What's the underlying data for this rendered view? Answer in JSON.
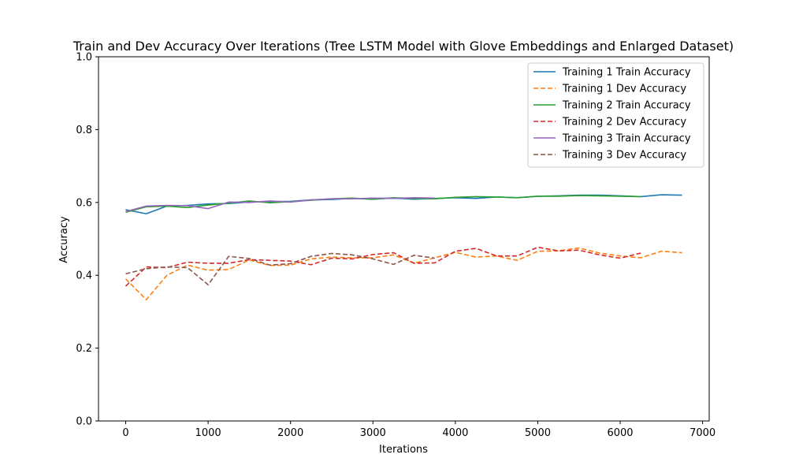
{
  "chart_data": {
    "type": "line",
    "title": "Train and Dev Accuracy Over Iterations (Tree LSTM Model with Glove Embeddings and Enlarged Dataset)",
    "xlabel": "Iterations",
    "ylabel": "Accuracy",
    "xlim": [
      -330,
      7080
    ],
    "ylim": [
      0,
      1.0
    ],
    "xticks": [
      0,
      1000,
      2000,
      3000,
      4000,
      5000,
      6000,
      7000
    ],
    "yticks": [
      0.0,
      0.2,
      0.4,
      0.6,
      0.8,
      1.0
    ],
    "xtick_labels": [
      "0",
      "1000",
      "2000",
      "3000",
      "4000",
      "5000",
      "6000",
      "7000"
    ],
    "ytick_labels": [
      "0.0",
      "0.2",
      "0.4",
      "0.6",
      "0.8",
      "1.0"
    ],
    "grid": false,
    "legend_position": "top-right",
    "series": [
      {
        "name": "Training 1 Train Accuracy",
        "color": "#1f77b4",
        "dash": "solid",
        "x": [
          0,
          250,
          500,
          750,
          1000,
          1250,
          1500,
          1750,
          2000,
          2250,
          2500,
          2750,
          3000,
          3250,
          3500,
          3750,
          4000,
          4250,
          4500,
          4750,
          5000,
          5250,
          5500,
          5750,
          6000,
          6250,
          6500,
          6750
        ],
        "y": [
          0.58,
          0.569,
          0.59,
          0.592,
          0.596,
          0.597,
          0.601,
          0.602,
          0.603,
          0.607,
          0.608,
          0.611,
          0.609,
          0.612,
          0.609,
          0.611,
          0.613,
          0.611,
          0.615,
          0.613,
          0.617,
          0.618,
          0.62,
          0.62,
          0.618,
          0.616,
          0.621,
          0.62
        ]
      },
      {
        "name": "Training 1 Dev Accuracy",
        "color": "#ff7f0e",
        "dash": "dashed",
        "x": [
          0,
          250,
          500,
          750,
          1000,
          1250,
          1500,
          1750,
          2000,
          2250,
          2500,
          2750,
          3000,
          3250,
          3500,
          3750,
          4000,
          4250,
          4500,
          4750,
          5000,
          5250,
          5500,
          5750,
          6000,
          6250,
          6500,
          6750
        ],
        "y": [
          0.39,
          0.333,
          0.4,
          0.428,
          0.414,
          0.416,
          0.442,
          0.427,
          0.428,
          0.445,
          0.45,
          0.448,
          0.448,
          0.456,
          0.433,
          0.448,
          0.463,
          0.45,
          0.453,
          0.441,
          0.466,
          0.467,
          0.475,
          0.461,
          0.453,
          0.448,
          0.466,
          0.462
        ]
      },
      {
        "name": "Training 2 Train Accuracy",
        "color": "#2ca02c",
        "dash": "solid",
        "x": [
          0,
          250,
          500,
          750,
          1000,
          1250,
          1500,
          1750,
          2000,
          2250,
          2500,
          2750,
          3000,
          3250,
          3500,
          3750,
          4000,
          4250,
          4500,
          4750,
          5000,
          5250,
          5500,
          5750,
          6000,
          6250
        ],
        "y": [
          0.573,
          0.588,
          0.59,
          0.586,
          0.593,
          0.598,
          0.604,
          0.599,
          0.602,
          0.606,
          0.61,
          0.612,
          0.609,
          0.613,
          0.611,
          0.61,
          0.614,
          0.616,
          0.615,
          0.613,
          0.617,
          0.617,
          0.619,
          0.618,
          0.617,
          0.616
        ]
      },
      {
        "name": "Training 2 Dev Accuracy",
        "color": "#d62728",
        "dash": "dashed",
        "x": [
          0,
          250,
          500,
          750,
          1000,
          1250,
          1500,
          1750,
          2000,
          2250,
          2500,
          2750,
          3000,
          3250,
          3500,
          3750,
          4000,
          4250,
          4500,
          4750,
          5000,
          5250,
          5500,
          5750,
          6000,
          6250
        ],
        "y": [
          0.37,
          0.423,
          0.421,
          0.436,
          0.433,
          0.433,
          0.443,
          0.441,
          0.439,
          0.429,
          0.447,
          0.445,
          0.457,
          0.462,
          0.433,
          0.434,
          0.466,
          0.474,
          0.453,
          0.453,
          0.477,
          0.467,
          0.469,
          0.456,
          0.447,
          0.461
        ]
      },
      {
        "name": "Training 3 Train Accuracy",
        "color": "#9467bd",
        "dash": "solid",
        "x": [
          0,
          250,
          500,
          750,
          1000,
          1250,
          1500,
          1750,
          2000,
          2250,
          2500,
          2750,
          3000,
          3250,
          3500,
          3750
        ],
        "y": [
          0.575,
          0.59,
          0.592,
          0.591,
          0.583,
          0.601,
          0.6,
          0.604,
          0.601,
          0.607,
          0.61,
          0.61,
          0.612,
          0.611,
          0.613,
          0.612
        ]
      },
      {
        "name": "Training 3 Dev Accuracy",
        "color": "#8c564b",
        "dash": "dashed",
        "x": [
          0,
          250,
          500,
          750,
          1000,
          1250,
          1500,
          1750,
          2000,
          2250,
          2500,
          2750,
          3000,
          3250,
          3500,
          3750
        ],
        "y": [
          0.404,
          0.418,
          0.423,
          0.421,
          0.374,
          0.452,
          0.446,
          0.428,
          0.432,
          0.452,
          0.46,
          0.456,
          0.445,
          0.43,
          0.455,
          0.447
        ]
      }
    ]
  }
}
